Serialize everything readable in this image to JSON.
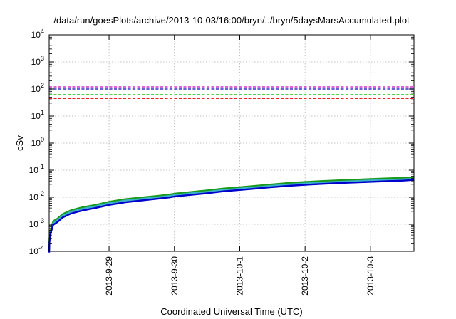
{
  "chart_data": {
    "type": "line",
    "title": "/data/run/goesPlots/archive/2013-10-03/16:00/bryn/../bryn/5daysMarsAccumulated.plot",
    "xlabel": "Coordinated Universal Time (UTC)",
    "ylabel": "cSv",
    "yscale": "log",
    "ylim": [
      0.0001,
      10000
    ],
    "y_ticks": [
      {
        "base": "10",
        "exp": "-4"
      },
      {
        "base": "10",
        "exp": "-3"
      },
      {
        "base": "10",
        "exp": "-2"
      },
      {
        "base": "10",
        "exp": "-1"
      },
      {
        "base": "10",
        "exp": "0"
      },
      {
        "base": "10",
        "exp": "1"
      },
      {
        "base": "10",
        "exp": "2"
      },
      {
        "base": "10",
        "exp": "3"
      },
      {
        "base": "10",
        "exp": "4"
      }
    ],
    "xlim": [
      "2013-09-28T02:00",
      "2013-10-03T16:00"
    ],
    "x_ticks": [
      "2013-9-29",
      "2013-9-30",
      "2013-10-1",
      "2013-10-2",
      "2013-10-3"
    ],
    "grid": true,
    "series": [
      {
        "color": "#1a9a1a",
        "x": [
          "2013-09-28T02:00",
          "2013-09-28T02:06",
          "2013-09-28T02:30",
          "2013-09-28T03:30",
          "2013-09-28T05:00",
          "2013-09-28T07:00",
          "2013-09-28T10:00",
          "2013-09-28T14:00",
          "2013-09-28T19:00",
          "2013-09-29T00:00",
          "2013-09-29T06:00",
          "2013-09-29T12:00",
          "2013-09-29T18:00",
          "2013-09-29T22:00",
          "2013-09-30T00:00",
          "2013-09-30T06:00",
          "2013-09-30T12:00",
          "2013-09-30T18:00",
          "2013-10-01T00:00",
          "2013-10-01T06:00",
          "2013-10-01T12:00",
          "2013-10-01T18:00",
          "2013-10-02T00:00",
          "2013-10-02T06:00",
          "2013-10-02T12:00",
          "2013-10-02T18:00",
          "2013-10-03T00:00",
          "2013-10-03T06:00",
          "2013-10-03T12:00",
          "2013-10-03T16:00"
        ],
        "values": [
          0.00012,
          0.0003,
          0.0006,
          0.0013,
          0.0016,
          0.0024,
          0.0033,
          0.0042,
          0.0052,
          0.0068,
          0.0085,
          0.0098,
          0.0112,
          0.0125,
          0.0135,
          0.0156,
          0.0178,
          0.021,
          0.0235,
          0.0265,
          0.03,
          0.0335,
          0.0365,
          0.0395,
          0.042,
          0.0445,
          0.047,
          0.0495,
          0.052,
          0.055
        ]
      },
      {
        "color": "#3ab0c8",
        "x": [
          "2013-09-28T02:00",
          "2013-09-28T02:06",
          "2013-09-28T02:30",
          "2013-09-28T03:30",
          "2013-09-28T05:00",
          "2013-09-28T07:00",
          "2013-09-28T10:00",
          "2013-09-28T14:00",
          "2013-09-28T19:00",
          "2013-09-29T00:00",
          "2013-09-29T06:00",
          "2013-09-29T12:00",
          "2013-09-29T18:00",
          "2013-09-29T22:00",
          "2013-09-30T00:00",
          "2013-09-30T06:00",
          "2013-09-30T12:00",
          "2013-09-30T18:00",
          "2013-10-01T00:00",
          "2013-10-01T06:00",
          "2013-10-01T12:00",
          "2013-10-01T18:00",
          "2013-10-02T00:00",
          "2013-10-02T06:00",
          "2013-10-02T12:00",
          "2013-10-02T18:00",
          "2013-10-03T00:00",
          "2013-10-03T06:00",
          "2013-10-03T12:00",
          "2013-10-03T16:00"
        ],
        "values": [
          0.0001,
          0.00026,
          0.00052,
          0.0011,
          0.0014,
          0.0021,
          0.0029,
          0.0037,
          0.0046,
          0.006,
          0.0075,
          0.0087,
          0.01,
          0.0111,
          0.012,
          0.0139,
          0.0158,
          0.0186,
          0.0208,
          0.0235,
          0.0266,
          0.0296,
          0.0323,
          0.035,
          0.0372,
          0.0394,
          0.0416,
          0.0438,
          0.046,
          0.0487
        ]
      },
      {
        "color": "#0000cc",
        "x": [
          "2013-09-28T02:00",
          "2013-09-28T02:06",
          "2013-09-28T02:30",
          "2013-09-28T03:30",
          "2013-09-28T05:00",
          "2013-09-28T07:00",
          "2013-09-28T10:00",
          "2013-09-28T14:00",
          "2013-09-28T19:00",
          "2013-09-29T00:00",
          "2013-09-29T06:00",
          "2013-09-29T12:00",
          "2013-09-29T18:00",
          "2013-09-29T22:00",
          "2013-09-30T00:00",
          "2013-09-30T06:00",
          "2013-09-30T12:00",
          "2013-09-30T18:00",
          "2013-10-01T00:00",
          "2013-10-01T06:00",
          "2013-10-01T12:00",
          "2013-10-01T18:00",
          "2013-10-02T00:00",
          "2013-10-02T06:00",
          "2013-10-02T12:00",
          "2013-10-02T18:00",
          "2013-10-03T00:00",
          "2013-10-03T06:00",
          "2013-10-03T12:00",
          "2013-10-03T16:00"
        ],
        "values": [
          9e-05,
          0.00022,
          0.00045,
          0.00095,
          0.0012,
          0.0018,
          0.0025,
          0.0032,
          0.004,
          0.0052,
          0.0065,
          0.0076,
          0.0088,
          0.0098,
          0.0106,
          0.0122,
          0.014,
          0.0165,
          0.0185,
          0.0209,
          0.0236,
          0.0263,
          0.0287,
          0.0311,
          0.0331,
          0.035,
          0.037,
          0.039,
          0.041,
          0.0435
        ]
      }
    ],
    "reference_lines": [
      {
        "y": 120,
        "color": "#cc33cc",
        "style": "dashed"
      },
      {
        "y": 100,
        "color": "#3333cc",
        "style": "dashed"
      },
      {
        "y": 62,
        "color": "#33cc33",
        "style": "dashed"
      },
      {
        "y": 45,
        "color": "#ee2222",
        "style": "dashed"
      }
    ]
  }
}
